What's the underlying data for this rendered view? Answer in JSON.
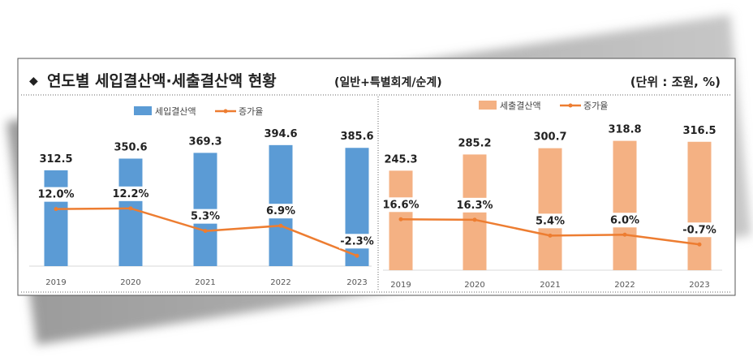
{
  "title": {
    "bullet": "◆",
    "main": "연도별 세입결산액·세출결산액 현황",
    "sub": "(일반+특별회계/순계)",
    "unit": "(단위 : 조원, %)"
  },
  "colors": {
    "revenue_bar": "#5B9BD5",
    "expenditure_bar": "#F4B183",
    "rate_line": "#ED7D31"
  },
  "chart_data": [
    {
      "type": "bar+line",
      "categories": [
        "2019",
        "2020",
        "2021",
        "2022",
        "2023"
      ],
      "series": [
        {
          "name": "세입결산액",
          "type": "bar",
          "values": [
            312.5,
            350.6,
            369.3,
            394.6,
            385.6
          ],
          "labels": [
            "312.5",
            "350.6",
            "369.3",
            "394.6",
            "385.6"
          ]
        },
        {
          "name": "증가율",
          "type": "line",
          "values": [
            12.0,
            12.2,
            5.3,
            6.9,
            -2.3
          ],
          "labels": [
            "12.0%",
            "12.2%",
            "5.3%",
            "6.9%",
            "-2.3%"
          ]
        }
      ],
      "legend": "top-center",
      "grid": false
    },
    {
      "type": "bar+line",
      "categories": [
        "2019",
        "2020",
        "2021",
        "2022",
        "2023"
      ],
      "series": [
        {
          "name": "세출결산액",
          "type": "bar",
          "values": [
            245.3,
            285.2,
            300.7,
            318.8,
            316.5
          ],
          "labels": [
            "245.3",
            "285.2",
            "300.7",
            "318.8",
            "316.5"
          ]
        },
        {
          "name": "증가율",
          "type": "line",
          "values": [
            16.6,
            16.3,
            5.4,
            6.0,
            -0.7
          ],
          "labels": [
            "16.6%",
            "16.3%",
            "5.4%",
            "6.0%",
            "-0.7%"
          ]
        }
      ],
      "legend": "top-center",
      "grid": false
    }
  ]
}
